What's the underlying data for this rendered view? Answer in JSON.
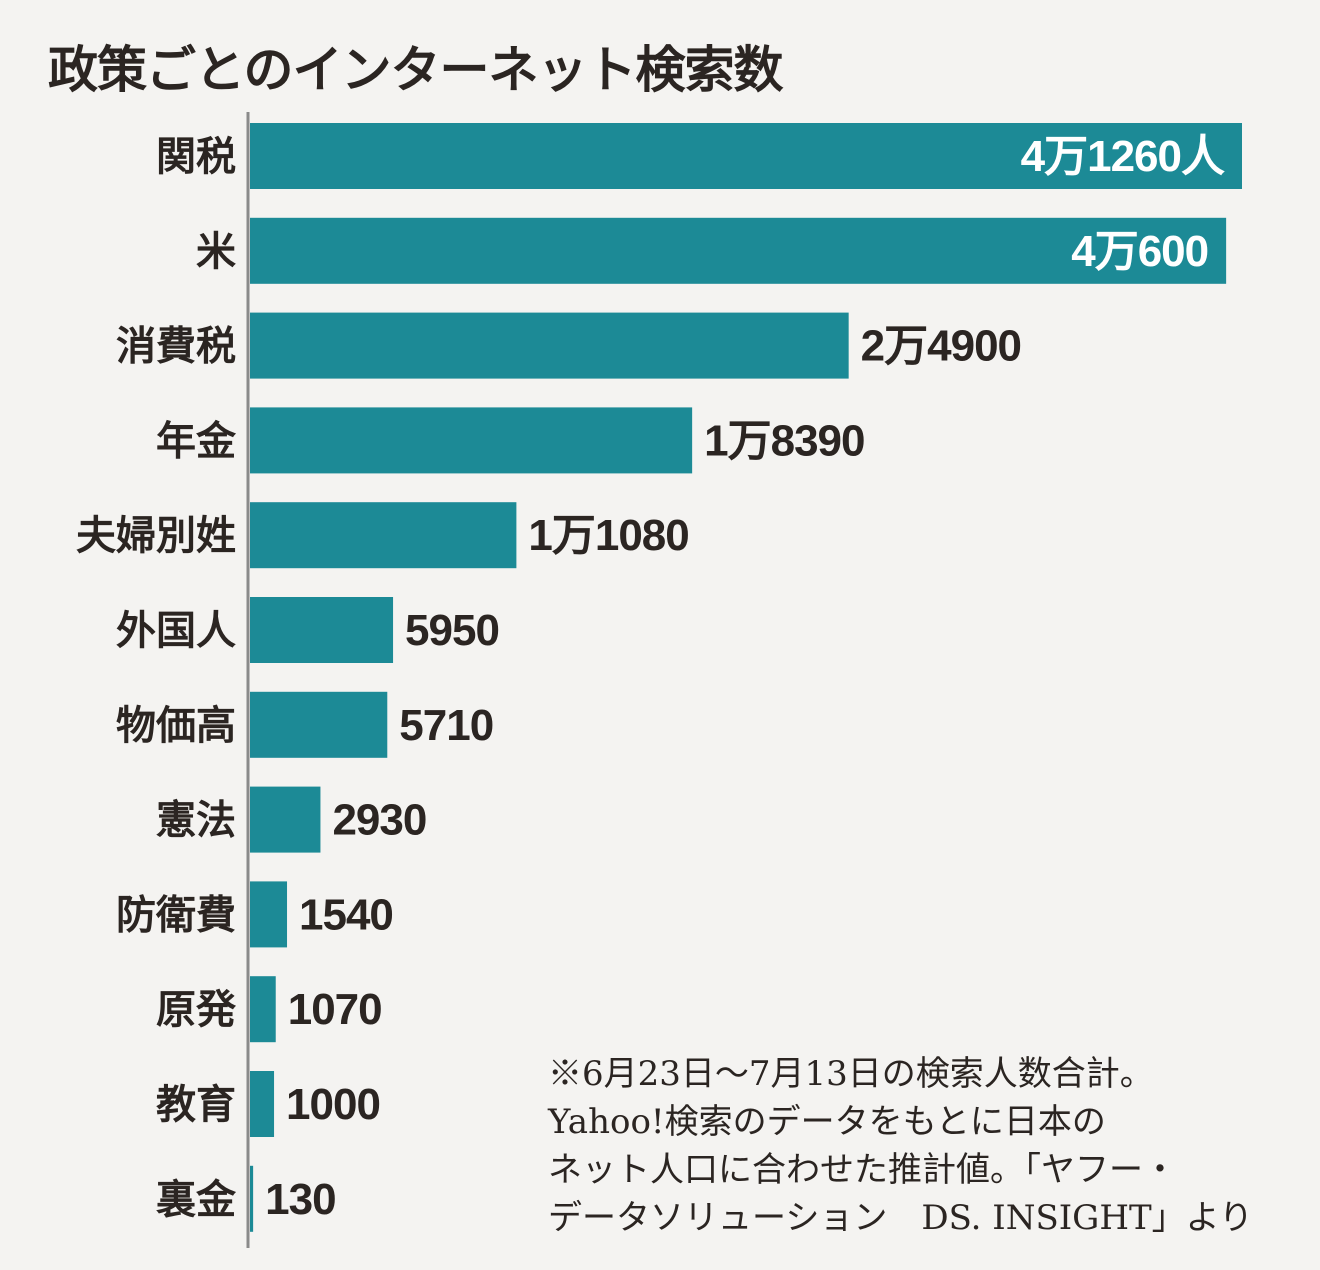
{
  "chart_data": {
    "type": "bar",
    "orientation": "horizontal",
    "title": "政策ごとのインターネット検索数",
    "categories": [
      "関税",
      "米",
      "消費税",
      "年金",
      "夫婦別姓",
      "外国人",
      "物価高",
      "憲法",
      "防衛費",
      "原発",
      "教育",
      "裏金"
    ],
    "values": [
      41260,
      40600,
      24900,
      18390,
      11080,
      5950,
      5710,
      2930,
      1540,
      1070,
      1000,
      130
    ],
    "value_labels": [
      "4万1260人",
      "4万600",
      "2万4900",
      "1万8390",
      "1万1080",
      "5950",
      "5710",
      "2930",
      "1540",
      "1070",
      "1000",
      "130"
    ],
    "xlim": [
      0,
      41260
    ],
    "bar_color": "#1c8a96",
    "grid": false
  },
  "note": {
    "lines": [
      "※6月23日～7月13日の検索人数合計。",
      "Yahoo!検索のデータをもとに日本の",
      "ネット人口に合わせた推計値。「ヤフー・",
      "データソリューション　DS. INSIGHT」より"
    ]
  }
}
